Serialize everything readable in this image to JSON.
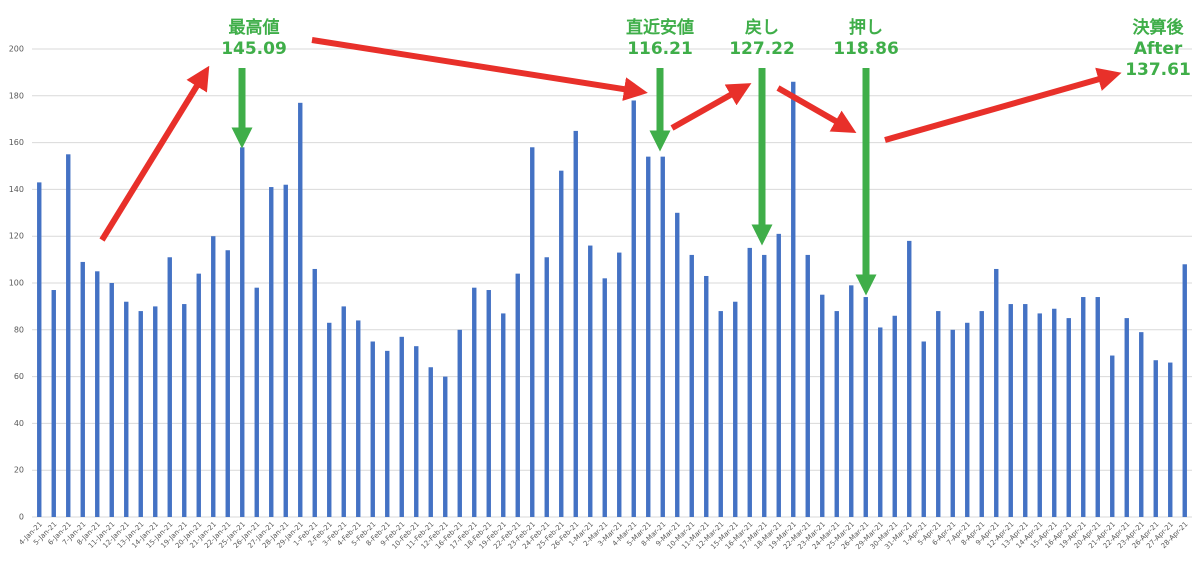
{
  "chart_data": {
    "type": "bar",
    "categories": [
      "4-Jan-21",
      "5-Jan-21",
      "6-Jan-21",
      "7-Jan-21",
      "8-Jan-21",
      "11-Jan-21",
      "12-Jan-21",
      "13-Jan-21",
      "14-Jan-21",
      "15-Jan-21",
      "19-Jan-21",
      "20-Jan-21",
      "21-Jan-21",
      "22-Jan-21",
      "25-Jan-21",
      "26-Jan-21",
      "27-Jan-21",
      "28-Jan-21",
      "29-Jan-21",
      "1-Feb-21",
      "2-Feb-21",
      "3-Feb-21",
      "4-Feb-21",
      "5-Feb-21",
      "8-Feb-21",
      "9-Feb-21",
      "10-Feb-21",
      "11-Feb-21",
      "12-Feb-21",
      "16-Feb-21",
      "17-Feb-21",
      "18-Feb-21",
      "19-Feb-21",
      "22-Feb-21",
      "23-Feb-21",
      "24-Feb-21",
      "25-Feb-21",
      "26-Feb-21",
      "1-Mar-21",
      "2-Mar-21",
      "3-Mar-21",
      "4-Mar-21",
      "5-Mar-21",
      "8-Mar-21",
      "9-Mar-21",
      "10-Mar-21",
      "11-Mar-21",
      "12-Mar-21",
      "15-Mar-21",
      "16-Mar-21",
      "17-Mar-21",
      "18-Mar-21",
      "19-Mar-21",
      "22-Mar-21",
      "23-Mar-21",
      "24-Mar-21",
      "25-Mar-21",
      "26-Mar-21",
      "29-Mar-21",
      "30-Mar-21",
      "31-Mar-21",
      "1-Apr-21",
      "5-Apr-21",
      "6-Apr-21",
      "7-Apr-21",
      "8-Apr-21",
      "9-Apr-21",
      "12-Apr-21",
      "13-Apr-21",
      "14-Apr-21",
      "15-Apr-21",
      "16-Apr-21",
      "19-Apr-21",
      "20-Apr-21",
      "21-Apr-21",
      "22-Apr-21",
      "23-Apr-21",
      "26-Apr-21",
      "27-Apr-21",
      "28-Apr-21"
    ],
    "values": [
      143,
      97,
      155,
      109,
      105,
      100,
      92,
      88,
      90,
      111,
      91,
      104,
      120,
      114,
      158,
      98,
      141,
      142,
      177,
      106,
      83,
      90,
      84,
      75,
      71,
      77,
      73,
      64,
      60,
      80,
      98,
      97,
      87,
      104,
      158,
      111,
      148,
      165,
      116,
      102,
      113,
      178,
      154,
      154,
      130,
      112,
      103,
      88,
      92,
      115,
      112,
      121,
      186,
      112,
      95,
      88,
      99,
      94,
      81,
      86,
      118,
      75,
      88,
      80,
      83,
      88,
      106,
      91,
      91,
      87,
      89,
      85,
      94,
      94,
      69,
      85,
      79,
      67,
      66,
      108
    ],
    "color": "#4472c4",
    "ylim": [
      0,
      200
    ],
    "yticks": [
      0,
      20,
      40,
      60,
      80,
      100,
      120,
      140,
      160,
      180,
      200
    ],
    "grid": true,
    "annotations": [
      {
        "label": "最高値",
        "value": 145.09
      },
      {
        "label": "直近安値",
        "value": 116.21
      },
      {
        "label": "戻し",
        "value": 127.22
      },
      {
        "label": "押し",
        "value": 118.86
      },
      {
        "label": "決算後",
        "label2": "After",
        "value": 137.61
      }
    ]
  }
}
